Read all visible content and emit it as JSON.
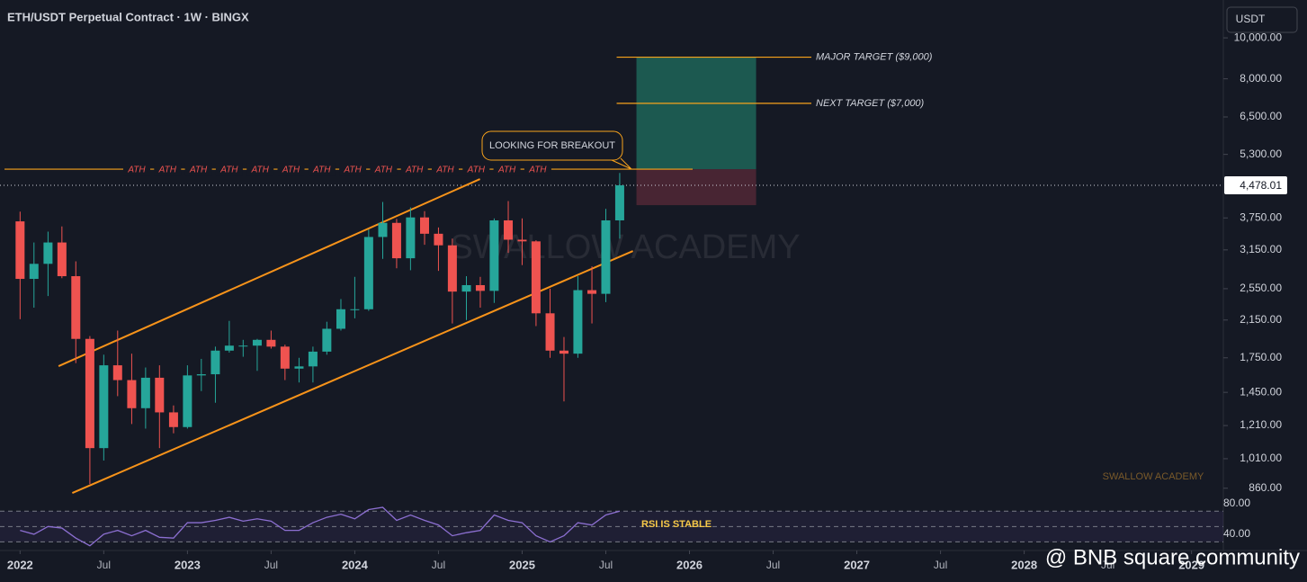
{
  "chart_data": {
    "type": "candlestick",
    "title": "ETH/USDT Perpetual Contract · 1W · BINGX",
    "currency": "USDT",
    "log_scale": true,
    "up_color": "#26a69a",
    "down_color": "#ef5350",
    "xlim": [
      2021.88,
      2029.19
    ],
    "xticks": [
      {
        "value": 2022,
        "label": "2022"
      },
      {
        "value": 2022.5,
        "label": "Jul"
      },
      {
        "value": 2023,
        "label": "2023"
      },
      {
        "value": 2023.5,
        "label": "Jul"
      },
      {
        "value": 2024,
        "label": "2024"
      },
      {
        "value": 2024.5,
        "label": "Jul"
      },
      {
        "value": 2025,
        "label": "2025"
      },
      {
        "value": 2025.5,
        "label": "Jul"
      },
      {
        "value": 2026,
        "label": "2026"
      },
      {
        "value": 2026.5,
        "label": "Jul"
      },
      {
        "value": 2027,
        "label": "2027"
      },
      {
        "value": 2027.5,
        "label": "Jul"
      },
      {
        "value": 2028,
        "label": "2028"
      },
      {
        "value": 2028.5,
        "label": "Jul"
      },
      {
        "value": 2029,
        "label": "2029"
      }
    ],
    "ylim": [
      830,
      12290
    ],
    "yticks": [
      {
        "value": 860,
        "label": "860.00"
      },
      {
        "value": 1010,
        "label": "1,010.00"
      },
      {
        "value": 1210,
        "label": "1,210.00"
      },
      {
        "value": 1450,
        "label": "1,450.00"
      },
      {
        "value": 1750,
        "label": "1,750.00"
      },
      {
        "value": 2150,
        "label": "2,150.00"
      },
      {
        "value": 2550,
        "label": "2,550.00"
      },
      {
        "value": 3150,
        "label": "3,150.00"
      },
      {
        "value": 3750,
        "label": "3,750.00"
      },
      {
        "value": 5300,
        "label": "5,300.00"
      },
      {
        "value": 6500,
        "label": "6,500.00"
      },
      {
        "value": 8000,
        "label": "8,000.00"
      },
      {
        "value": 10000,
        "label": "10,000.00"
      }
    ],
    "last_price": {
      "value": 4478.01,
      "label": "4,478.01"
    },
    "x": [
      2022.0,
      2022.083,
      2022.167,
      2022.25,
      2022.333,
      2022.417,
      2022.5,
      2022.583,
      2022.667,
      2022.75,
      2022.833,
      2022.917,
      2023.0,
      2023.083,
      2023.167,
      2023.25,
      2023.333,
      2023.417,
      2023.5,
      2023.583,
      2023.667,
      2023.75,
      2023.833,
      2023.917,
      2024.0,
      2024.083,
      2024.167,
      2024.25,
      2024.333,
      2024.417,
      2024.5,
      2024.583,
      2024.667,
      2024.75,
      2024.833,
      2024.917,
      2025.0,
      2025.083,
      2025.167,
      2025.25,
      2025.333,
      2025.417,
      2025.5,
      2025.583
    ],
    "open": [
      3680,
      2690,
      2920,
      3280,
      2730,
      1940,
      1070,
      1680,
      1550,
      1330,
      1570,
      1300,
      1200,
      1590,
      1600,
      1820,
      1870,
      1870,
      1930,
      1860,
      1650,
      1670,
      1810,
      2050,
      2280,
      2280,
      3380,
      3650,
      3010,
      3760,
      3440,
      3230,
      2510,
      2600,
      2520,
      3700,
      3330,
      3300,
      2230,
      1820,
      1790,
      2530,
      2480,
      3700
    ],
    "high": [
      3880,
      3280,
      3480,
      3580,
      2960,
      1970,
      1780,
      2030,
      1790,
      1660,
      1680,
      1350,
      1680,
      1740,
      1860,
      2140,
      1930,
      1940,
      2030,
      1880,
      1750,
      1860,
      2130,
      2410,
      2720,
      3520,
      4090,
      3730,
      3970,
      3890,
      3560,
      3350,
      2730,
      2720,
      3740,
      4110,
      3740,
      3320,
      2550,
      1960,
      2730,
      2880,
      3940,
      4790
    ],
    "low": [
      2160,
      2300,
      2450,
      2700,
      1700,
      880,
      1000,
      1420,
      1220,
      1190,
      1070,
      1160,
      1190,
      1460,
      1370,
      1800,
      1760,
      1630,
      1840,
      1550,
      1530,
      1530,
      1780,
      2030,
      2170,
      2260,
      3000,
      2850,
      2820,
      3240,
      2810,
      2110,
      2150,
      2300,
      2360,
      3100,
      2900,
      2080,
      1750,
      1380,
      1750,
      2110,
      2370,
      3350
    ],
    "close": [
      2690,
      2920,
      3280,
      2730,
      1940,
      1070,
      1680,
      1550,
      1330,
      1570,
      1300,
      1200,
      1590,
      1600,
      1820,
      1870,
      1870,
      1930,
      1860,
      1650,
      1670,
      1810,
      2050,
      2280,
      2280,
      3380,
      3650,
      3010,
      3760,
      3440,
      3230,
      2510,
      2600,
      2520,
      3700,
      3330,
      3300,
      2230,
      1820,
      1790,
      2530,
      2480,
      3700,
      4478.01
    ],
    "trendlines": [
      {
        "x": [
          2022.23,
          2024.748
        ],
        "y": [
          1672,
          4634
        ]
      },
      {
        "x": [
          2022.312,
          2025.662
        ],
        "y": [
          838,
          3131
        ]
      }
    ],
    "ath": {
      "label": "ATH",
      "value": 4890
    },
    "callout": "LOOKING FOR BREAKOUT",
    "targets": [
      {
        "text": "MAJOR TARGET ($9,000)",
        "value": 9000
      },
      {
        "text": "NEXT TARGET ($7,000)",
        "value": 7000
      }
    ],
    "target_zone": {
      "x": [
        2025.683,
        2026.398
      ],
      "high": 9000,
      "low": 4890
    },
    "stop_zone": {
      "high": 4890,
      "low": 4020
    },
    "watermark": "SWALLOW ACADEMY",
    "rsi": {
      "label": "RSI IS STABLE",
      "ylim": [
        27,
        89
      ],
      "yticks": [
        {
          "value": 80,
          "label": "80.00"
        },
        {
          "value": 40,
          "label": "40.00"
        }
      ],
      "levels": [
        70,
        50,
        30
      ],
      "color": "#8c6fd1",
      "values": [
        45,
        40,
        50,
        48,
        35,
        25,
        40,
        45,
        38,
        45,
        36,
        35,
        55,
        55,
        58,
        62,
        57,
        60,
        57,
        45,
        45,
        55,
        62,
        66,
        60,
        72,
        75,
        58,
        65,
        58,
        52,
        38,
        42,
        45,
        65,
        58,
        55,
        38,
        30,
        38,
        55,
        52,
        65,
        70
      ]
    },
    "credit": "@ BNB square community"
  }
}
